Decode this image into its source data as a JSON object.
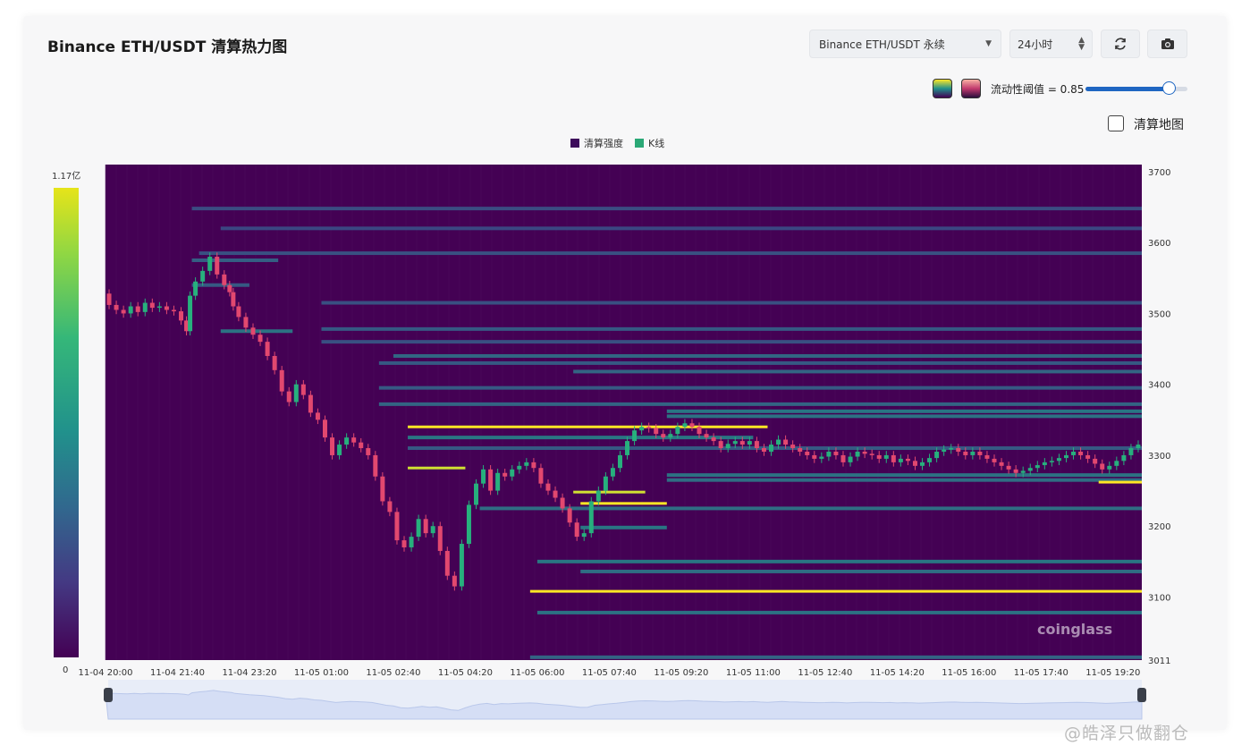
{
  "header": {
    "title": "Binance ETH/USDT 清算热力图",
    "market_select": "Binance ETH/USDT 永续",
    "range_select": "24小时",
    "refresh_icon": "refresh-icon",
    "camera_icon": "camera-icon"
  },
  "controls": {
    "threshold_label": "流动性阈值 = 0.85",
    "threshold_value": 0.85,
    "liq_map_label": "清算地图",
    "liq_map_checked": false
  },
  "colorbar": {
    "max_label": "1.17亿",
    "min_label": "0"
  },
  "brand": "coinglass",
  "watermark": "@皓泽只做翻仓",
  "colors": {
    "background": "#440154",
    "band_mid": "#2a8a8c",
    "band_high": "#fde725",
    "candle_up": "#27b07d",
    "candle_down": "#e2486f",
    "navigator_fill": "#d5def5"
  },
  "chart_data": {
    "type": "heatmap",
    "legend": [
      {
        "name": "清算强度",
        "color": "#3d0b5b"
      },
      {
        "name": "K线",
        "color": "#2aa876"
      }
    ],
    "x_ticks": [
      "11-04 20:00",
      "11-04 21:40",
      "11-04 23:20",
      "11-05 01:00",
      "11-05 02:40",
      "11-05 04:20",
      "11-05 06:00",
      "11-05 07:40",
      "11-05 09:20",
      "11-05 11:00",
      "11-05 12:40",
      "11-05 14:20",
      "11-05 16:00",
      "11-05 17:40",
      "11-05 19:20"
    ],
    "y_ticks": [
      3700,
      3600,
      3500,
      3400,
      3300,
      3200,
      3100,
      3011
    ],
    "ylim": [
      3011,
      3710
    ],
    "x_range_minutes": [
      0,
      1440
    ],
    "price_path": [
      [
        0,
        3528
      ],
      [
        10,
        3512
      ],
      [
        20,
        3505
      ],
      [
        30,
        3500
      ],
      [
        40,
        3510
      ],
      [
        50,
        3502
      ],
      [
        60,
        3515
      ],
      [
        70,
        3508
      ],
      [
        80,
        3510
      ],
      [
        90,
        3505
      ],
      [
        100,
        3503
      ],
      [
        110,
        3490
      ],
      [
        115,
        3475
      ],
      [
        120,
        3525
      ],
      [
        130,
        3545
      ],
      [
        140,
        3560
      ],
      [
        150,
        3580
      ],
      [
        160,
        3555
      ],
      [
        170,
        3540
      ],
      [
        175,
        3530
      ],
      [
        180,
        3510
      ],
      [
        190,
        3495
      ],
      [
        200,
        3480
      ],
      [
        210,
        3470
      ],
      [
        220,
        3460
      ],
      [
        230,
        3440
      ],
      [
        240,
        3420
      ],
      [
        250,
        3390
      ],
      [
        260,
        3375
      ],
      [
        270,
        3400
      ],
      [
        280,
        3385
      ],
      [
        290,
        3360
      ],
      [
        300,
        3350
      ],
      [
        310,
        3325
      ],
      [
        320,
        3300
      ],
      [
        330,
        3315
      ],
      [
        340,
        3325
      ],
      [
        350,
        3318
      ],
      [
        360,
        3310
      ],
      [
        370,
        3300
      ],
      [
        380,
        3270
      ],
      [
        390,
        3235
      ],
      [
        400,
        3220
      ],
      [
        410,
        3180
      ],
      [
        420,
        3170
      ],
      [
        430,
        3185
      ],
      [
        440,
        3210
      ],
      [
        450,
        3190
      ],
      [
        460,
        3200
      ],
      [
        470,
        3165
      ],
      [
        480,
        3130
      ],
      [
        490,
        3115
      ],
      [
        500,
        3175
      ],
      [
        510,
        3230
      ],
      [
        520,
        3260
      ],
      [
        530,
        3280
      ],
      [
        540,
        3250
      ],
      [
        550,
        3275
      ],
      [
        560,
        3270
      ],
      [
        570,
        3280
      ],
      [
        580,
        3285
      ],
      [
        590,
        3290
      ],
      [
        600,
        3282
      ],
      [
        610,
        3260
      ],
      [
        620,
        3250
      ],
      [
        630,
        3240
      ],
      [
        640,
        3225
      ],
      [
        650,
        3205
      ],
      [
        660,
        3185
      ],
      [
        670,
        3190
      ],
      [
        680,
        3235
      ],
      [
        690,
        3250
      ],
      [
        700,
        3270
      ],
      [
        710,
        3282
      ],
      [
        720,
        3300
      ],
      [
        730,
        3320
      ],
      [
        740,
        3335
      ],
      [
        750,
        3340
      ],
      [
        760,
        3338
      ],
      [
        770,
        3330
      ],
      [
        780,
        3325
      ],
      [
        790,
        3330
      ],
      [
        800,
        3340
      ],
      [
        810,
        3345
      ],
      [
        820,
        3340
      ],
      [
        830,
        3330
      ],
      [
        840,
        3325
      ],
      [
        850,
        3320
      ],
      [
        860,
        3310
      ],
      [
        870,
        3316
      ],
      [
        880,
        3320
      ],
      [
        890,
        3315
      ],
      [
        900,
        3320
      ],
      [
        910,
        3310
      ],
      [
        920,
        3305
      ],
      [
        930,
        3315
      ],
      [
        940,
        3322
      ],
      [
        950,
        3315
      ],
      [
        960,
        3310
      ],
      [
        970,
        3305
      ],
      [
        980,
        3300
      ],
      [
        990,
        3295
      ],
      [
        1000,
        3298
      ],
      [
        1010,
        3305
      ],
      [
        1020,
        3300
      ],
      [
        1030,
        3290
      ],
      [
        1040,
        3298
      ],
      [
        1050,
        3305
      ],
      [
        1060,
        3302
      ],
      [
        1070,
        3300
      ],
      [
        1080,
        3295
      ],
      [
        1090,
        3300
      ],
      [
        1100,
        3290
      ],
      [
        1110,
        3295
      ],
      [
        1120,
        3292
      ],
      [
        1130,
        3285
      ],
      [
        1140,
        3290
      ],
      [
        1150,
        3296
      ],
      [
        1160,
        3305
      ],
      [
        1170,
        3308
      ],
      [
        1180,
        3310
      ],
      [
        1190,
        3305
      ],
      [
        1200,
        3300
      ],
      [
        1210,
        3305
      ],
      [
        1220,
        3300
      ],
      [
        1230,
        3295
      ],
      [
        1240,
        3290
      ],
      [
        1250,
        3285
      ],
      [
        1260,
        3280
      ],
      [
        1270,
        3275
      ],
      [
        1280,
        3278
      ],
      [
        1290,
        3282
      ],
      [
        1300,
        3286
      ],
      [
        1310,
        3290
      ],
      [
        1320,
        3292
      ],
      [
        1330,
        3296
      ],
      [
        1340,
        3300
      ],
      [
        1350,
        3305
      ],
      [
        1360,
        3300
      ],
      [
        1370,
        3295
      ],
      [
        1380,
        3288
      ],
      [
        1390,
        3280
      ],
      [
        1400,
        3285
      ],
      [
        1410,
        3292
      ],
      [
        1420,
        3300
      ],
      [
        1430,
        3310
      ],
      [
        1440,
        3315
      ]
    ],
    "liquidation_bands": [
      {
        "price": 3648,
        "start_min": 120,
        "end_min": 1440,
        "intensity": 0.28
      },
      {
        "price": 3620,
        "start_min": 160,
        "end_min": 1440,
        "intensity": 0.26
      },
      {
        "price": 3585,
        "start_min": 130,
        "end_min": 1440,
        "intensity": 0.3
      },
      {
        "price": 3575,
        "start_min": 120,
        "end_min": 240,
        "intensity": 0.38
      },
      {
        "price": 3540,
        "start_min": 120,
        "end_min": 200,
        "intensity": 0.35
      },
      {
        "price": 3515,
        "start_min": 300,
        "end_min": 1440,
        "intensity": 0.3
      },
      {
        "price": 3478,
        "start_min": 300,
        "end_min": 1440,
        "intensity": 0.35
      },
      {
        "price": 3475,
        "start_min": 160,
        "end_min": 260,
        "intensity": 0.5
      },
      {
        "price": 3460,
        "start_min": 300,
        "end_min": 1440,
        "intensity": 0.3
      },
      {
        "price": 3440,
        "start_min": 400,
        "end_min": 1440,
        "intensity": 0.42
      },
      {
        "price": 3430,
        "start_min": 380,
        "end_min": 1440,
        "intensity": 0.35
      },
      {
        "price": 3418,
        "start_min": 650,
        "end_min": 1440,
        "intensity": 0.4
      },
      {
        "price": 3395,
        "start_min": 380,
        "end_min": 1440,
        "intensity": 0.35
      },
      {
        "price": 3372,
        "start_min": 380,
        "end_min": 1440,
        "intensity": 0.4
      },
      {
        "price": 3362,
        "start_min": 780,
        "end_min": 1440,
        "intensity": 0.55
      },
      {
        "price": 3355,
        "start_min": 780,
        "end_min": 1440,
        "intensity": 0.5
      },
      {
        "price": 3340,
        "start_min": 420,
        "end_min": 920,
        "intensity": 1.0
      },
      {
        "price": 3325,
        "start_min": 420,
        "end_min": 900,
        "intensity": 0.55
      },
      {
        "price": 3310,
        "start_min": 420,
        "end_min": 1440,
        "intensity": 0.35
      },
      {
        "price": 3282,
        "start_min": 420,
        "end_min": 500,
        "intensity": 0.95
      },
      {
        "price": 3272,
        "start_min": 780,
        "end_min": 1440,
        "intensity": 0.5
      },
      {
        "price": 3265,
        "start_min": 780,
        "end_min": 1440,
        "intensity": 0.45
      },
      {
        "price": 3262,
        "start_min": 1380,
        "end_min": 1440,
        "intensity": 1.0
      },
      {
        "price": 3248,
        "start_min": 650,
        "end_min": 750,
        "intensity": 0.95
      },
      {
        "price": 3232,
        "start_min": 660,
        "end_min": 780,
        "intensity": 1.0
      },
      {
        "price": 3225,
        "start_min": 520,
        "end_min": 1440,
        "intensity": 0.45
      },
      {
        "price": 3198,
        "start_min": 660,
        "end_min": 780,
        "intensity": 0.55
      },
      {
        "price": 3150,
        "start_min": 600,
        "end_min": 1440,
        "intensity": 0.55
      },
      {
        "price": 3136,
        "start_min": 660,
        "end_min": 1440,
        "intensity": 0.45
      },
      {
        "price": 3108,
        "start_min": 590,
        "end_min": 1440,
        "intensity": 1.0
      },
      {
        "price": 3078,
        "start_min": 600,
        "end_min": 1440,
        "intensity": 0.5
      },
      {
        "price": 3015,
        "start_min": 590,
        "end_min": 1440,
        "intensity": 0.4
      }
    ]
  }
}
